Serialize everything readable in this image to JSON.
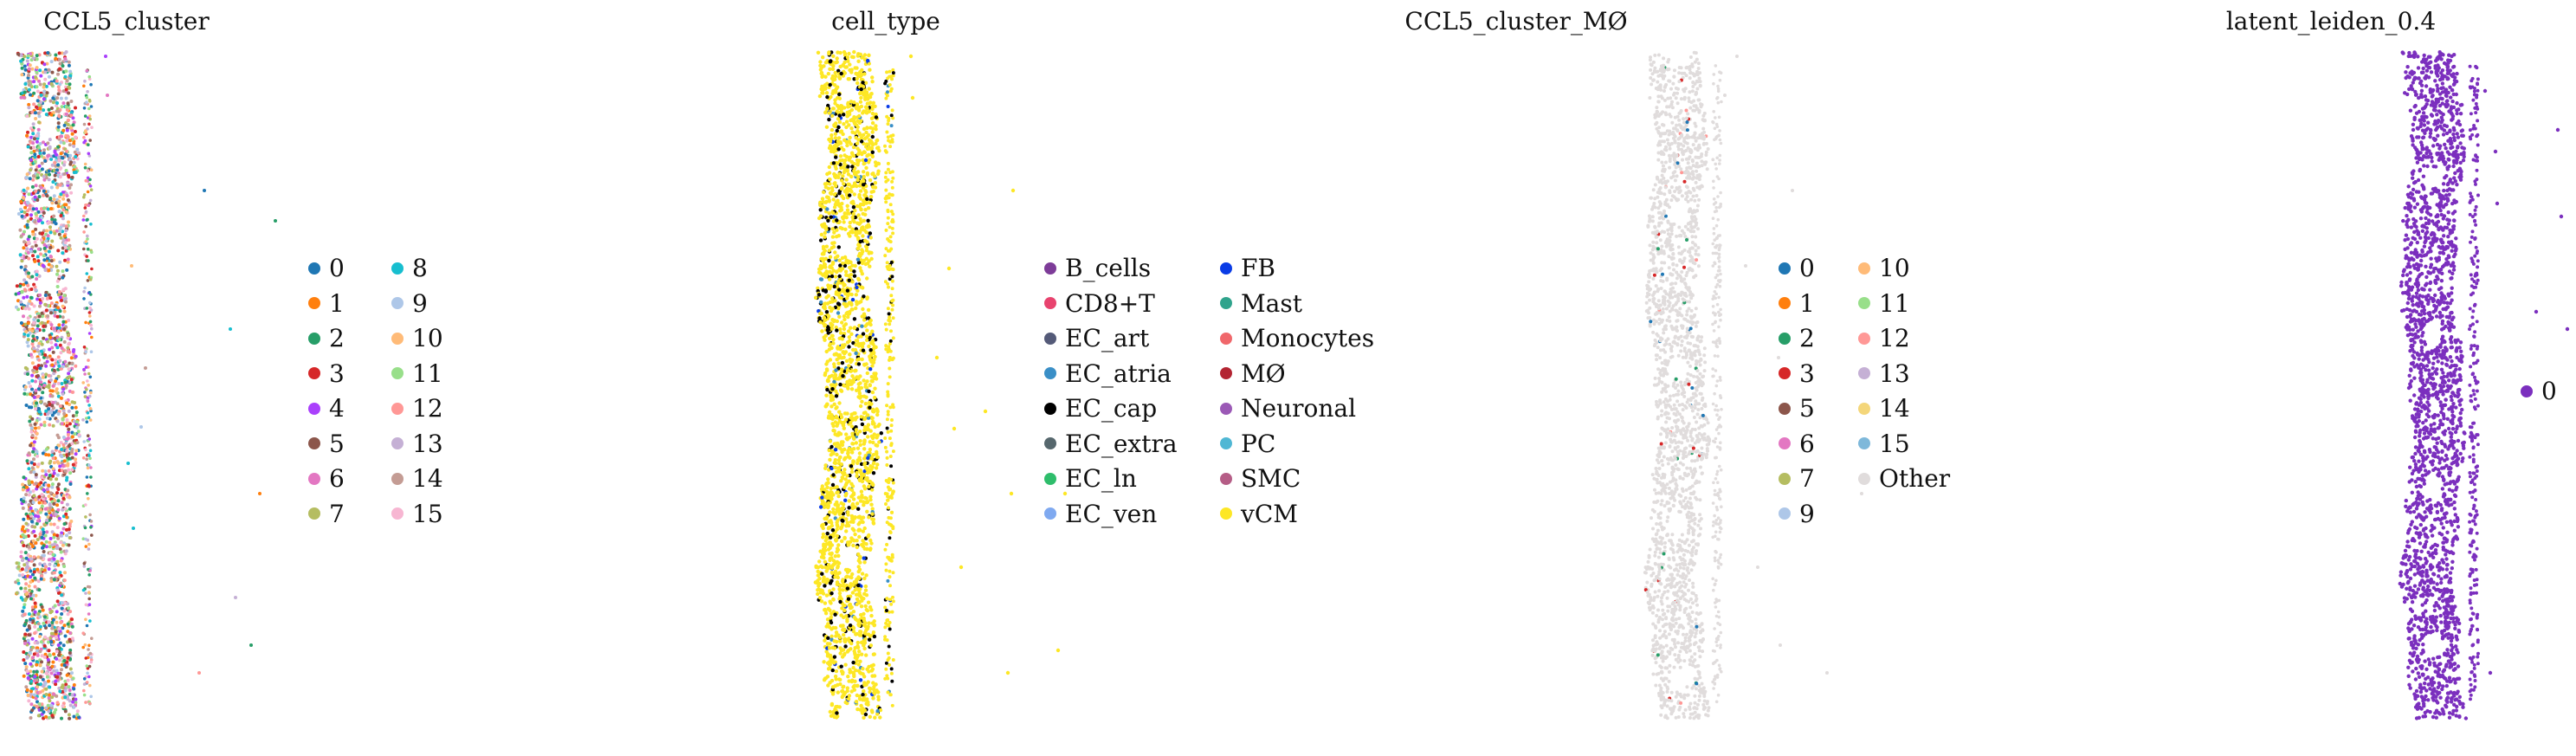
{
  "chart_data": [
    {
      "type": "scatter",
      "title": "CCL5_cluster",
      "legend": {
        "position": "right",
        "columns": [
          [
            {
              "label": "0",
              "color": "#1f77b4"
            },
            {
              "label": "1",
              "color": "#ff7f0e"
            },
            {
              "label": "2",
              "color": "#279e68"
            },
            {
              "label": "3",
              "color": "#d62728"
            },
            {
              "label": "4",
              "color": "#aa40fc"
            },
            {
              "label": "5",
              "color": "#8c564b"
            },
            {
              "label": "6",
              "color": "#e377c2"
            },
            {
              "label": "7",
              "color": "#b5bd61"
            }
          ],
          [
            {
              "label": "8",
              "color": "#17becf"
            },
            {
              "label": "9",
              "color": "#aec7e8"
            },
            {
              "label": "10",
              "color": "#ffbb78"
            },
            {
              "label": "11",
              "color": "#98df8a"
            },
            {
              "label": "12",
              "color": "#ff9896"
            },
            {
              "label": "13",
              "color": "#c5b0d5"
            },
            {
              "label": "14",
              "color": "#c49c94"
            },
            {
              "label": "15",
              "color": "#f7b6d2"
            }
          ]
        ]
      },
      "point_colors": [
        "#1f77b4",
        "#ff7f0e",
        "#279e68",
        "#d62728",
        "#aa40fc",
        "#8c564b",
        "#e377c2",
        "#b5bd61",
        "#17becf",
        "#aec7e8",
        "#ffbb78",
        "#98df8a",
        "#ff9896",
        "#c5b0d5",
        "#c49c94",
        "#f7b6d2"
      ],
      "point_weights": null
    },
    {
      "type": "scatter",
      "title": "cell_type",
      "legend": {
        "position": "right",
        "columns": [
          [
            {
              "label": "B_cells",
              "color": "#7d3c98"
            },
            {
              "label": "CD8+T",
              "color": "#e8436e"
            },
            {
              "label": "EC_art",
              "color": "#545a78"
            },
            {
              "label": "EC_atria",
              "color": "#3a8fc7"
            },
            {
              "label": "EC_cap",
              "color": "#000000"
            },
            {
              "label": "EC_extra",
              "color": "#56676d"
            },
            {
              "label": "EC_ln",
              "color": "#2ebd6b"
            },
            {
              "label": "EC_ven",
              "color": "#7fa9f0"
            }
          ],
          [
            {
              "label": "FB",
              "color": "#0a3ce6"
            },
            {
              "label": "Mast",
              "color": "#2fa38c"
            },
            {
              "label": "Monocytes",
              "color": "#f0676b"
            },
            {
              "label": "MØ",
              "color": "#b32431"
            },
            {
              "label": "Neuronal",
              "color": "#9b59b6"
            },
            {
              "label": "PC",
              "color": "#4fb7d4"
            },
            {
              "label": "SMC",
              "color": "#b55d86"
            },
            {
              "label": "vCM",
              "color": "#fde725"
            }
          ]
        ]
      },
      "point_colors": [
        "#fde725",
        "#000000",
        "#0a3ce6",
        "#3a8fc7"
      ],
      "point_weights": [
        0.86,
        0.1,
        0.02,
        0.02
      ]
    },
    {
      "type": "scatter",
      "title": "CCL5_cluster_MØ",
      "legend": {
        "position": "right",
        "columns": [
          [
            {
              "label": "0",
              "color": "#1f77b4"
            },
            {
              "label": "1",
              "color": "#ff7f0e"
            },
            {
              "label": "2",
              "color": "#279e68"
            },
            {
              "label": "3",
              "color": "#d62728"
            },
            {
              "label": "5",
              "color": "#8c564b"
            },
            {
              "label": "6",
              "color": "#e377c2"
            },
            {
              "label": "7",
              "color": "#b5bd61"
            },
            {
              "label": "9",
              "color": "#aec7e8"
            }
          ],
          [
            {
              "label": "10",
              "color": "#ffbb78"
            },
            {
              "label": "11",
              "color": "#98df8a"
            },
            {
              "label": "12",
              "color": "#ff9896"
            },
            {
              "label": "13",
              "color": "#c5b0d5"
            },
            {
              "label": "14",
              "color": "#f4d67a"
            },
            {
              "label": "15",
              "color": "#7eb8da"
            },
            {
              "label": "Other",
              "color": "#e0dcdc"
            }
          ]
        ]
      },
      "point_colors": [
        "#e0dcdc",
        "#d62728",
        "#1f77b4",
        "#279e68",
        "#ff9896"
      ],
      "point_weights": [
        0.975,
        0.007,
        0.006,
        0.006,
        0.006
      ]
    },
    {
      "type": "scatter",
      "title": "latent_leiden_0.4",
      "legend": {
        "position": "right",
        "columns": [
          [
            {
              "label": "0",
              "color": "#7b2fbe"
            }
          ]
        ]
      },
      "point_colors": [
        "#7b2fbe"
      ],
      "point_weights": null
    }
  ]
}
